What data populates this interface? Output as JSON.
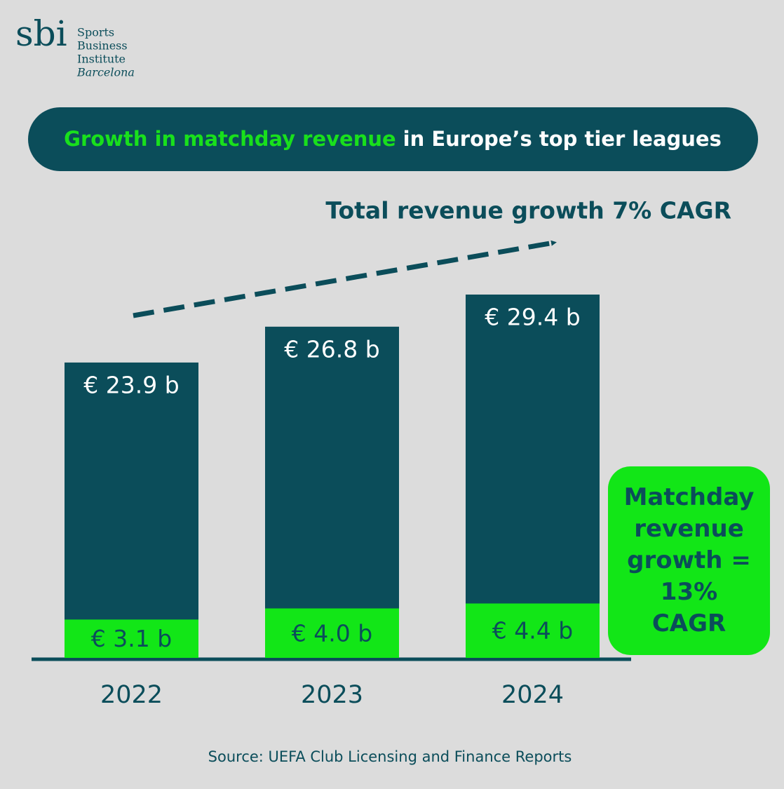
{
  "chart_data": {
    "type": "bar",
    "logo": {
      "mark": "sbi",
      "lines": [
        "Sports",
        "Business",
        "Institute",
        "Barcelona"
      ]
    },
    "title_highlight": "Growth in matchday revenue",
    "title_rest": "in Europe’s top tier leagues",
    "annotation": "Total revenue growth 7% CAGR",
    "callout": "Matchday revenue growth = 13% CAGR",
    "categories": [
      "2022",
      "2023",
      "2024"
    ],
    "series": [
      {
        "color": "#0b4d5a",
        "values": [
          23.9,
          26.8,
          29.4
        ],
        "value_labels": [
          "€ 23.9 b",
          "€ 26.8 b",
          "€ 29.4 b"
        ]
      },
      {
        "color": "#12e617",
        "values": [
          3.1,
          4.0,
          4.4
        ],
        "value_labels": [
          "€ 3.1 b",
          "€ 4.0 b",
          "€ 4.4 b"
        ]
      }
    ],
    "source": "Source: UEFA Club Licensing and Finance Reports"
  }
}
